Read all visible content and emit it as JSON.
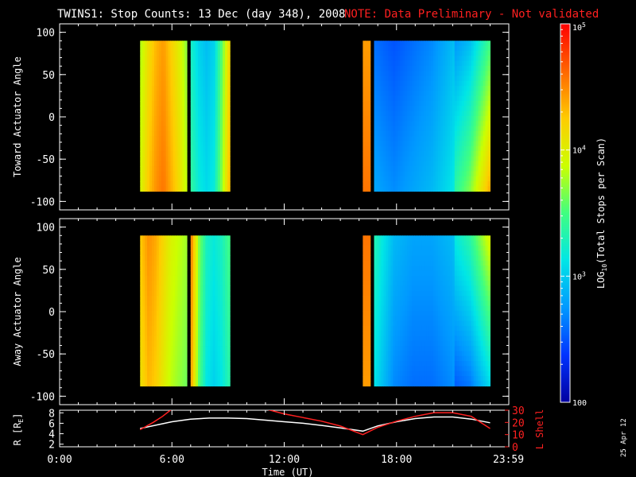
{
  "header": {
    "title": "TWINS1: Stop Counts: 13 Dec (day 348), 2008",
    "note": "NOTE: Data Preliminary - Not validated"
  },
  "date_stamp": "25 Apr 12",
  "colors": {
    "background": "#000000",
    "axes": "#ffffff",
    "note": "#ff2020",
    "lshell": "#ff2020"
  },
  "colorbar": {
    "label": "LOG10(Total Stops per Scan)",
    "label_main": "LOG",
    "label_sub": "10",
    "label_rest": "(Total Stops per Scan)",
    "scale": "log",
    "range": [
      100,
      100000
    ],
    "ticks": [
      {
        "value": 100000,
        "base": "10",
        "exp": "5"
      },
      {
        "value": 10000,
        "base": "10",
        "exp": "4"
      },
      {
        "value": 1000,
        "base": "10",
        "exp": "3"
      },
      {
        "value": 100,
        "base": "100",
        "exp": ""
      }
    ],
    "colormap": [
      "#0000a0",
      "#0033ff",
      "#0099ff",
      "#00e6e6",
      "#40ff80",
      "#ccff00",
      "#ffcc00",
      "#ff6600",
      "#ff0000"
    ]
  },
  "chart_data": [
    {
      "type": "heatmap",
      "id": "toward",
      "ylabel": "Toward Actuator Angle",
      "ylim": [
        -110,
        110
      ],
      "yticks": [
        "100",
        "50",
        "0",
        "-50",
        "-100"
      ],
      "ytick_values": [
        100,
        50,
        0,
        -50,
        -100
      ],
      "xlim": [
        0,
        24
      ],
      "x_range_hours": [
        0,
        24
      ],
      "data_blocks": [
        {
          "t_start": 4.3,
          "t_end": 6.8,
          "angle_range": [
            -88,
            90
          ],
          "log_counts_profile": [
            3.9,
            4.2,
            4.4,
            4.5,
            4.3,
            4.1,
            3.8
          ]
        },
        {
          "t_start": 7.0,
          "t_end": 9.1,
          "angle_range": [
            -88,
            90
          ],
          "log_counts_profile": [
            3.3,
            3.1,
            3.0,
            3.1,
            3.6,
            4.2
          ]
        },
        {
          "t_start": 16.2,
          "t_end": 16.6,
          "angle_range": [
            -88,
            90
          ],
          "log_counts_profile": [
            4.5
          ]
        },
        {
          "t_start": 16.8,
          "t_end": 23.0,
          "angle_range": [
            -88,
            90
          ],
          "log_counts_profile": [
            2.7,
            2.6,
            2.7,
            2.8,
            3.0,
            3.3,
            3.9
          ]
        }
      ]
    },
    {
      "type": "heatmap",
      "id": "away",
      "ylabel": "Away Actuator Angle",
      "ylim": [
        -110,
        110
      ],
      "yticks": [
        "100",
        "50",
        "0",
        "-50",
        "-100"
      ],
      "ytick_values": [
        100,
        50,
        0,
        -50,
        -100
      ],
      "xlim": [
        0,
        24
      ],
      "x_range_hours": [
        0,
        24
      ],
      "data_blocks": [
        {
          "t_start": 4.3,
          "t_end": 6.8,
          "angle_range": [
            -88,
            90
          ],
          "log_counts_profile": [
            4.2,
            4.4,
            4.3,
            4.1,
            3.9,
            3.8,
            3.7
          ]
        },
        {
          "t_start": 7.0,
          "t_end": 9.1,
          "angle_range": [
            -88,
            90
          ],
          "log_counts_profile": [
            4.4,
            3.6,
            3.2,
            3.1,
            3.2,
            3.4
          ]
        },
        {
          "t_start": 16.2,
          "t_end": 16.6,
          "angle_range": [
            -88,
            90
          ],
          "log_counts_profile": [
            4.5
          ]
        },
        {
          "t_start": 16.8,
          "t_end": 23.0,
          "angle_range": [
            -88,
            90
          ],
          "log_counts_profile": [
            3.2,
            2.8,
            2.7,
            2.7,
            2.8,
            3.0,
            3.5
          ]
        }
      ]
    },
    {
      "type": "line",
      "id": "orbit",
      "ylabel": "R [R",
      "ylabel_sub": "E",
      "ylabel_end": "]",
      "ylim": [
        1.5,
        8.5
      ],
      "yticks": [
        "8",
        "6",
        "4",
        "2"
      ],
      "ytick_values": [
        8,
        6,
        4,
        2
      ],
      "y2label": "L Shell",
      "y2lim": [
        0,
        30
      ],
      "y2ticks": [
        "30",
        "20",
        "10",
        "0"
      ],
      "y2tick_values": [
        30,
        20,
        10,
        0
      ],
      "xlim": [
        0,
        24
      ],
      "xlabel": "Time (UT)",
      "xticks": [
        "0:00",
        "6:00",
        "12:00",
        "18:00",
        "23:59"
      ],
      "xtick_values": [
        0,
        6,
        12,
        18,
        23.98
      ],
      "series": [
        {
          "name": "R",
          "color": "#ffffff",
          "x": [
            4.3,
            6,
            7,
            8,
            9,
            10,
            11,
            12,
            13,
            14,
            15,
            16.2,
            17,
            18,
            19,
            20,
            21,
            22,
            23
          ],
          "y": [
            5.0,
            6.3,
            6.8,
            7.0,
            7.0,
            6.9,
            6.6,
            6.3,
            6.0,
            5.6,
            5.1,
            4.5,
            5.5,
            6.3,
            6.9,
            7.2,
            7.2,
            6.8,
            6.1
          ]
        },
        {
          "name": "L Shell",
          "color": "#ff2020",
          "x": [
            4.3,
            5.0,
            5.5,
            6.0,
            11.0,
            11.5,
            12,
            13,
            14,
            15,
            16.2,
            17,
            18,
            19,
            20,
            21,
            22,
            23
          ],
          "y": [
            14,
            20,
            25,
            31,
            31,
            29,
            27,
            24,
            21,
            17,
            10,
            16,
            21,
            25,
            28,
            28,
            25,
            15
          ]
        }
      ]
    }
  ]
}
